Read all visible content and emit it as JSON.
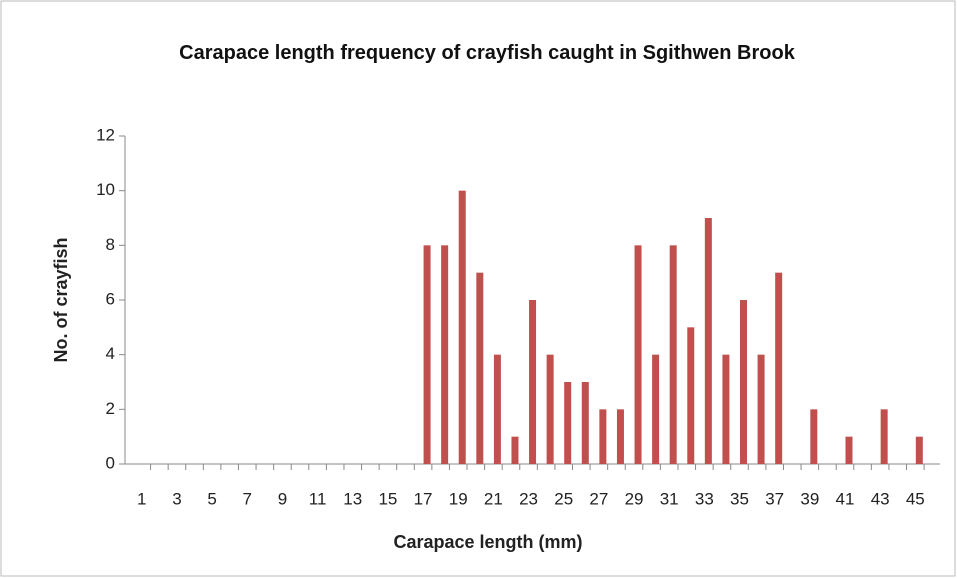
{
  "chart_data": {
    "type": "bar",
    "title": "Carapace length frequency of crayfish caught in Sgithwen Brook",
    "x_label": "Carapace length (mm)",
    "y_label": "No. of crayfish",
    "categories": [
      "1",
      null,
      "3",
      null,
      "5",
      null,
      "7",
      null,
      "9",
      null,
      "11",
      null,
      "13",
      null,
      "15",
      null,
      "17",
      null,
      "19",
      null,
      "21",
      null,
      "23",
      null,
      "25",
      null,
      "27",
      null,
      "29",
      null,
      "31",
      null,
      "33",
      null,
      "35",
      null,
      "37",
      null,
      "39",
      null,
      "41",
      null,
      "43",
      null,
      "45"
    ],
    "values": [
      0,
      0,
      0,
      0,
      0,
      0,
      0,
      0,
      0,
      0,
      0,
      0,
      0,
      0,
      0,
      0,
      8,
      8,
      10,
      7,
      4,
      1,
      6,
      4,
      3,
      3,
      2,
      2,
      8,
      4,
      8,
      5,
      9,
      4,
      6,
      4,
      7,
      0,
      2,
      0,
      1,
      0,
      2,
      0,
      1
    ],
    "color": "#c0504d",
    "ylim": [
      0,
      12
    ],
    "yticks": [
      0,
      2,
      4,
      6,
      8,
      10,
      12
    ],
    "grid": false
  }
}
